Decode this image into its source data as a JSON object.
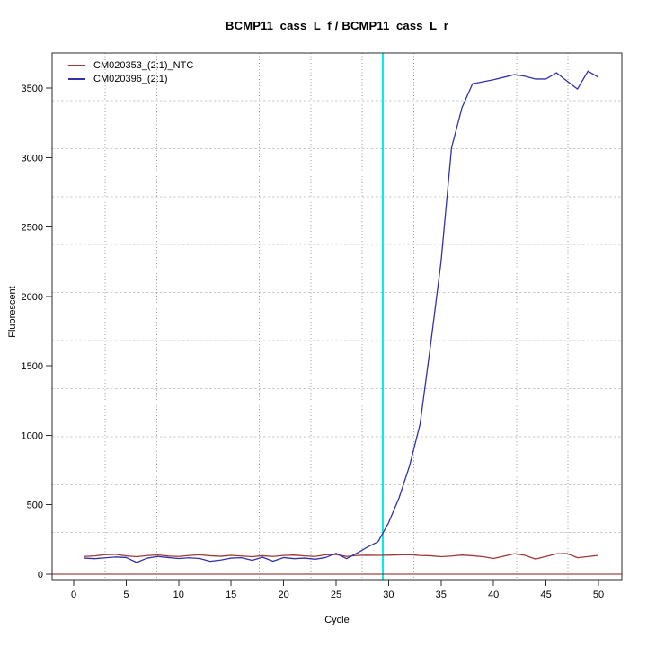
{
  "chart_data": {
    "type": "line",
    "title": "BCMP11_cass_L_f / BCMP11_cass_L_r",
    "xlabel": "Cycle",
    "ylabel": "Fluorescent",
    "x_ticks": [
      0,
      5,
      10,
      15,
      20,
      25,
      30,
      35,
      40,
      45,
      50
    ],
    "y_ticks": [
      0,
      500,
      1000,
      1500,
      2000,
      2500,
      3000,
      3500
    ],
    "xlim": [
      -2.2,
      52.2
    ],
    "ylim": [
      -39,
      3752
    ],
    "legend_position": "top-left",
    "grid": {
      "style": "dotted",
      "x_line_color": "#9A9A9A",
      "y_line_color": "#C8C8C8",
      "x_values": [
        3.0,
        7.9,
        12.8,
        17.7,
        22.6,
        27.5,
        32.4,
        37.3,
        42.2,
        47.1
      ],
      "y_values": [
        300,
        645,
        991,
        1336,
        1682,
        2027,
        2373,
        2718,
        3064,
        3409
      ]
    },
    "ct_line": {
      "x": 29.45,
      "color": "#00EFEF"
    },
    "zero_line": {
      "y": 0,
      "color": "#8B1A1A"
    },
    "x": [
      1,
      2,
      3,
      4,
      5,
      6,
      7,
      8,
      9,
      10,
      11,
      12,
      13,
      14,
      15,
      16,
      17,
      18,
      19,
      20,
      21,
      22,
      23,
      24,
      25,
      26,
      27,
      28,
      29,
      30,
      31,
      32,
      33,
      34,
      35,
      36,
      37,
      38,
      39,
      40,
      41,
      42,
      43,
      44,
      45,
      46,
      47,
      48,
      49,
      50
    ],
    "series": [
      {
        "name": "CM020353_(2:1)_NTC",
        "color": "#9E3939",
        "values": [
          128,
          132,
          141,
          143,
          132,
          126,
          134,
          139,
          131,
          128,
          135,
          140,
          133,
          129,
          136,
          131,
          126,
          133,
          128,
          135,
          138,
          132,
          128,
          140,
          142,
          128,
          135,
          137,
          136,
          137,
          139,
          141,
          135,
          133,
          126,
          131,
          138,
          133,
          126,
          113,
          130,
          148,
          136,
          109,
          128,
          147,
          149,
          119,
          127,
          136
        ]
      },
      {
        "name": "CM020396_(2:1)",
        "color": "#3232A8",
        "values": [
          116,
          112,
          118,
          124,
          120,
          85,
          116,
          128,
          120,
          113,
          118,
          113,
          93,
          102,
          116,
          119,
          100,
          122,
          94,
          120,
          112,
          116,
          108,
          120,
          150,
          112,
          152,
          196,
          234,
          370,
          550,
          780,
          1080,
          1650,
          2250,
          3070,
          3360,
          3531,
          3545,
          3560,
          3578,
          3597,
          3585,
          3565,
          3565,
          3610,
          3550,
          3493,
          3622,
          3577
        ]
      }
    ]
  },
  "legend": {
    "items": [
      {
        "label": "CM020353_(2:1)_NTC"
      },
      {
        "label": "CM020396_(2:1)"
      }
    ]
  }
}
